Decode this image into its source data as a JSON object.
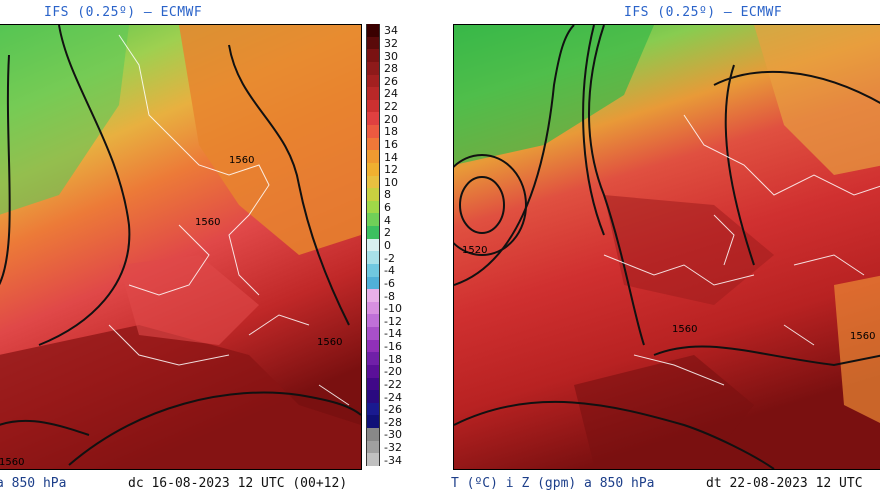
{
  "left_panel": {
    "title": "IFS (0.25º) — ECMWF",
    "caption_var": "a 850 hPa",
    "caption_date": "dc 16-08-2023 12 UTC (00+12)",
    "contour_labels": [
      "1560",
      "1560",
      "1560",
      "1560"
    ]
  },
  "right_panel": {
    "title": "IFS (0.25º) — ECMWF",
    "caption_var": "T (ºC) i Z (gpm) a 850 hPa",
    "caption_date": "dt 22-08-2023 12 UTC",
    "contour_labels": [
      "1520",
      "1560",
      "1560"
    ]
  },
  "colorbar": {
    "labels": [
      "34",
      "32",
      "30",
      "28",
      "26",
      "24",
      "22",
      "20",
      "18",
      "16",
      "14",
      "12",
      "10",
      "8",
      "6",
      "4",
      "2",
      "0",
      "-2",
      "-4",
      "-6",
      "-8",
      "-10",
      "-12",
      "-14",
      "-16",
      "-18",
      "-20",
      "-22",
      "-24",
      "-26",
      "-28",
      "-30",
      "-32",
      "-34"
    ],
    "colors": [
      "#3a0000",
      "#5a0a0a",
      "#7a1212",
      "#8e1a1a",
      "#a32020",
      "#b82828",
      "#cc3030",
      "#e04040",
      "#ec5a40",
      "#f07838",
      "#f09a30",
      "#f0b030",
      "#e8c040",
      "#c8d040",
      "#a0d848",
      "#70d058",
      "#3cc060",
      "#d8f0f0",
      "#a8e0e8",
      "#70c8e0",
      "#50b0d8",
      "#e8b0e8",
      "#d890e0",
      "#c070d8",
      "#a850c8",
      "#9030b8",
      "#7020a8",
      "#5a1098",
      "#400888",
      "#2a0a80",
      "#1a1a90",
      "#101078",
      "#888888",
      "#a0a0a0",
      "#c0c0c0"
    ]
  }
}
